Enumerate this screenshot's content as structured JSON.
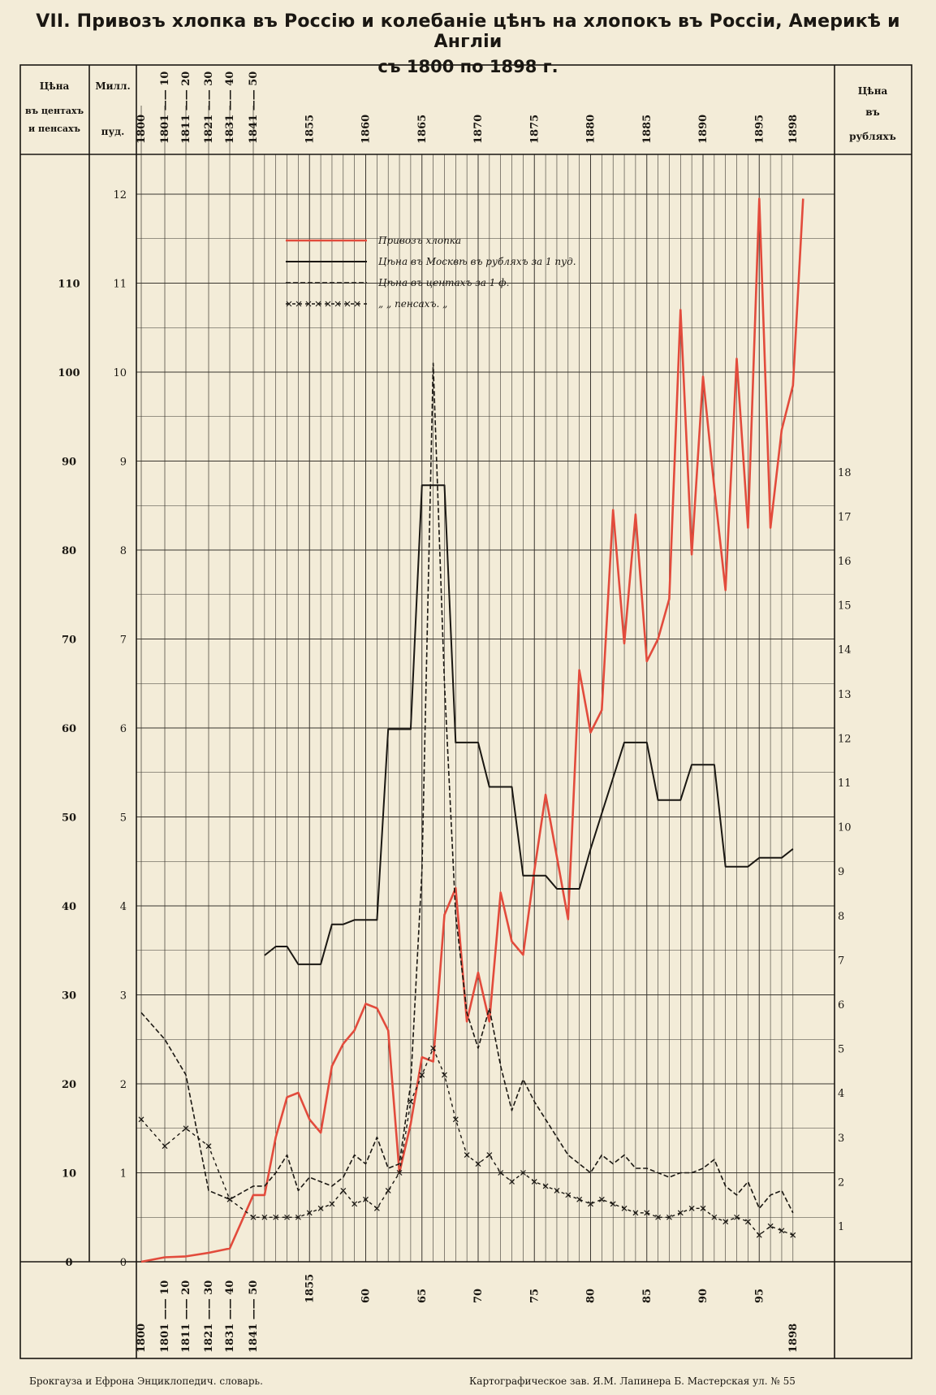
{
  "title": "VII. Привозъ хлопка въ Россію и колебаніе цѣнъ на хлопокъ въ Россіи, Америкѣ и Англіи",
  "subtitle": "съ 1800 по 1898 г.",
  "headers": {
    "left_price": "Цѣна въ центахъ и пенсахъ",
    "mill": "Милл. пуд.",
    "right_price": "Цѣна въ рубляхъ"
  },
  "x_top_labels": [
    "1800",
    "1801 —— 10",
    "1811 —— 20",
    "1821 —— 30",
    "1831 —— 40",
    "1841 —— 50",
    "1855",
    "1860",
    "1865",
    "1870",
    "1875",
    "1880",
    "1885",
    "1890",
    "1895",
    "1898"
  ],
  "x_bottom_labels": [
    "1800",
    "1801 —— 10",
    "1811 —— 20",
    "1821 —— 30",
    "1831 —— 40",
    "1841 —— 50",
    "1855",
    "60",
    "65",
    "70",
    "75",
    "80",
    "85",
    "90",
    "95",
    "1898"
  ],
  "legend": [
    "Привозъ хлопка",
    "Цѣна въ Москвѣ въ рубляхъ за 1 пуд.",
    "Цѣна въ центахъ за 1 ф.",
    "„ „ пенсахъ. „"
  ],
  "footer_left": "Брокгауза и Ефрона Энциклопедич. словарь.",
  "footer_right": "Картографическое зав. Я.М. Лапинера Б. Мастерская ул. № 55",
  "colors": {
    "paper": "#f3ecd8",
    "ink": "#1a1712",
    "import": "#e24b3c"
  },
  "chart_data": {
    "type": "line",
    "x_periods": [
      "1800",
      "1801-10",
      "1811-20",
      "1821-30",
      "1831-40",
      "1841-50"
    ],
    "x_years_range": [
      1851,
      1898
    ],
    "axes": {
      "left_outer": {
        "label": "Цѣна въ центахъ и пенсахъ",
        "ticks": [
          0,
          10,
          20,
          30,
          40,
          50,
          60,
          70,
          80,
          90,
          100,
          110
        ]
      },
      "left_inner": {
        "label": "Милл. пуд.",
        "ticks": [
          0,
          1,
          2,
          3,
          4,
          5,
          6,
          7,
          8,
          9,
          10,
          11,
          12
        ]
      },
      "right": {
        "label": "Цѣна въ рубляхъ",
        "ticks": [
          1,
          2,
          3,
          4,
          5,
          6,
          7,
          8,
          9,
          10,
          11,
          12,
          13,
          14,
          15,
          16,
          17,
          18
        ]
      }
    },
    "series": [
      {
        "name": "Привозъ хлопка",
        "axis": "mill_pud",
        "style": "red",
        "points": [
          [
            "1800",
            0.0
          ],
          [
            "1801-10",
            0.05
          ],
          [
            "1811-20",
            0.06
          ],
          [
            "1821-30",
            0.1
          ],
          [
            "1831-40",
            0.15
          ],
          [
            "1841-50",
            0.75
          ],
          [
            1851,
            0.75
          ],
          [
            1852,
            1.4
          ],
          [
            1853,
            1.85
          ],
          [
            1854,
            1.9
          ],
          [
            1855,
            1.6
          ],
          [
            1856,
            1.45
          ],
          [
            1857,
            2.2
          ],
          [
            1858,
            2.45
          ],
          [
            1859,
            2.6
          ],
          [
            1860,
            2.9
          ],
          [
            1861,
            2.85
          ],
          [
            1862,
            2.6
          ],
          [
            1863,
            1.0
          ],
          [
            1864,
            1.55
          ],
          [
            1865,
            2.3
          ],
          [
            1866,
            2.25
          ],
          [
            1867,
            3.9
          ],
          [
            1868,
            4.2
          ],
          [
            1869,
            2.7
          ],
          [
            1870,
            3.25
          ],
          [
            1871,
            2.7
          ],
          [
            1872,
            4.15
          ],
          [
            1873,
            3.6
          ],
          [
            1874,
            3.45
          ],
          [
            1875,
            4.4
          ],
          [
            1876,
            5.25
          ],
          [
            1877,
            4.55
          ],
          [
            1878,
            3.85
          ],
          [
            1879,
            6.65
          ],
          [
            1880,
            5.95
          ],
          [
            1881,
            6.2
          ],
          [
            1882,
            8.45
          ],
          [
            1883,
            6.95
          ],
          [
            1884,
            8.4
          ],
          [
            1885,
            6.75
          ],
          [
            1886,
            7.0
          ],
          [
            1887,
            7.45
          ],
          [
            1888,
            10.7
          ],
          [
            1889,
            7.95
          ],
          [
            1890,
            9.95
          ],
          [
            1891,
            8.7
          ],
          [
            1892,
            7.55
          ],
          [
            1893,
            10.15
          ],
          [
            1894,
            8.25
          ],
          [
            1895,
            11.95
          ],
          [
            1896,
            8.25
          ],
          [
            1897,
            9.35
          ],
          [
            1898,
            9.85
          ],
          [
            1898.9,
            11.95
          ]
        ]
      },
      {
        "name": "Цѣна въ Москвѣ въ рубляхъ за 1 пуд.",
        "axis": "rubles",
        "style": "solid",
        "points": [
          [
            1851,
            7.1
          ],
          [
            1852,
            7.3
          ],
          [
            1853,
            7.3
          ],
          [
            1854,
            6.9
          ],
          [
            1855,
            6.9
          ],
          [
            1856,
            6.9
          ],
          [
            1857,
            7.8
          ],
          [
            1858,
            7.8
          ],
          [
            1859,
            7.9
          ],
          [
            1860,
            7.9
          ],
          [
            1861,
            7.9
          ],
          [
            1862,
            12.2
          ],
          [
            1863,
            12.2
          ],
          [
            1864,
            12.2
          ],
          [
            1865,
            17.7
          ],
          [
            1866,
            17.7
          ],
          [
            1867,
            17.7
          ],
          [
            1868,
            11.9
          ],
          [
            1869,
            11.9
          ],
          [
            1870,
            11.9
          ],
          [
            1871,
            10.9
          ],
          [
            1872,
            10.9
          ],
          [
            1873,
            10.9
          ],
          [
            1874,
            8.9
          ],
          [
            1875,
            8.9
          ],
          [
            1876,
            8.9
          ],
          [
            1877,
            8.6
          ],
          [
            1878,
            8.6
          ],
          [
            1879,
            8.6
          ],
          [
            1880,
            9.5
          ],
          [
            1881,
            10.3
          ],
          [
            1882,
            11.1
          ],
          [
            1883,
            11.9
          ],
          [
            1884,
            11.9
          ],
          [
            1885,
            11.9
          ],
          [
            1886,
            10.6
          ],
          [
            1887,
            10.6
          ],
          [
            1888,
            10.6
          ],
          [
            1889,
            11.4
          ],
          [
            1890,
            11.4
          ],
          [
            1891,
            11.4
          ],
          [
            1892,
            9.1
          ],
          [
            1893,
            9.1
          ],
          [
            1894,
            9.1
          ],
          [
            1895,
            9.3
          ],
          [
            1896,
            9.3
          ],
          [
            1897,
            9.3
          ],
          [
            1898,
            9.5
          ]
        ]
      },
      {
        "name": "Цѣна въ центахъ за 1 ф.",
        "axis": "cents_pence",
        "style": "dashed",
        "points": [
          [
            "1800",
            28
          ],
          [
            "1801-10",
            25
          ],
          [
            "1811-20",
            21
          ],
          [
            "1821-30",
            8
          ],
          [
            "1831-40",
            7
          ],
          [
            "1841-50",
            8.5
          ],
          [
            1851,
            8.5
          ],
          [
            1852,
            10
          ],
          [
            1853,
            12
          ],
          [
            1854,
            8
          ],
          [
            1855,
            9.5
          ],
          [
            1856,
            9
          ],
          [
            1857,
            8.5
          ],
          [
            1858,
            9.5
          ],
          [
            1859,
            12
          ],
          [
            1860,
            11
          ],
          [
            1861,
            14
          ],
          [
            1862,
            10.5
          ],
          [
            1863,
            11
          ],
          [
            1864,
            20
          ],
          [
            1865,
            44
          ],
          [
            1866,
            101
          ],
          [
            1867,
            65
          ],
          [
            1868,
            39
          ],
          [
            1869,
            28
          ],
          [
            1870,
            24
          ],
          [
            1871,
            28.5
          ],
          [
            1872,
            22
          ],
          [
            1873,
            17
          ],
          [
            1874,
            20.5
          ],
          [
            1875,
            18
          ],
          [
            1876,
            16
          ],
          [
            1877,
            14
          ],
          [
            1878,
            12
          ],
          [
            1879,
            11
          ],
          [
            1880,
            10
          ],
          [
            1881,
            12
          ],
          [
            1882,
            11
          ],
          [
            1883,
            12
          ],
          [
            1884,
            10.5
          ],
          [
            1885,
            10.5
          ],
          [
            1886,
            10
          ],
          [
            1887,
            9.5
          ],
          [
            1888,
            10
          ],
          [
            1889,
            10
          ],
          [
            1890,
            10.5
          ],
          [
            1891,
            11.5
          ],
          [
            1892,
            8.5
          ],
          [
            1893,
            7.5
          ],
          [
            1894,
            9
          ],
          [
            1895,
            6
          ],
          [
            1896,
            7.5
          ],
          [
            1897,
            8
          ],
          [
            1898,
            5.5
          ]
        ]
      },
      {
        "name": "„ „ пенсахъ. „",
        "axis": "cents_pence",
        "style": "dash-cross",
        "points": [
          [
            "1800",
            16
          ],
          [
            "1801-10",
            13
          ],
          [
            "1811-20",
            15
          ],
          [
            "1821-30",
            13
          ],
          [
            "1831-40",
            7
          ],
          [
            "1841-50",
            5
          ],
          [
            1851,
            5
          ],
          [
            1852,
            5
          ],
          [
            1853,
            5
          ],
          [
            1854,
            5
          ],
          [
            1855,
            5.5
          ],
          [
            1856,
            6
          ],
          [
            1857,
            6.5
          ],
          [
            1858,
            8
          ],
          [
            1859,
            6.5
          ],
          [
            1860,
            7
          ],
          [
            1861,
            6
          ],
          [
            1862,
            8
          ],
          [
            1863,
            10
          ],
          [
            1864,
            18
          ],
          [
            1865,
            21
          ],
          [
            1866,
            24
          ],
          [
            1867,
            21
          ],
          [
            1868,
            16
          ],
          [
            1869,
            12
          ],
          [
            1870,
            11
          ],
          [
            1871,
            12
          ],
          [
            1872,
            10
          ],
          [
            1873,
            9
          ],
          [
            1874,
            10
          ],
          [
            1875,
            9
          ],
          [
            1876,
            8.5
          ],
          [
            1877,
            8
          ],
          [
            1878,
            7.5
          ],
          [
            1879,
            7
          ],
          [
            1880,
            6.5
          ],
          [
            1881,
            7
          ],
          [
            1882,
            6.5
          ],
          [
            1883,
            6
          ],
          [
            1884,
            5.5
          ],
          [
            1885,
            5.5
          ],
          [
            1886,
            5
          ],
          [
            1887,
            5
          ],
          [
            1888,
            5.5
          ],
          [
            1889,
            6
          ],
          [
            1890,
            6
          ],
          [
            1891,
            5
          ],
          [
            1892,
            4.5
          ],
          [
            1893,
            5
          ],
          [
            1894,
            4.5
          ],
          [
            1895,
            3
          ],
          [
            1896,
            4
          ],
          [
            1897,
            3.5
          ],
          [
            1898,
            3
          ]
        ]
      }
    ]
  }
}
